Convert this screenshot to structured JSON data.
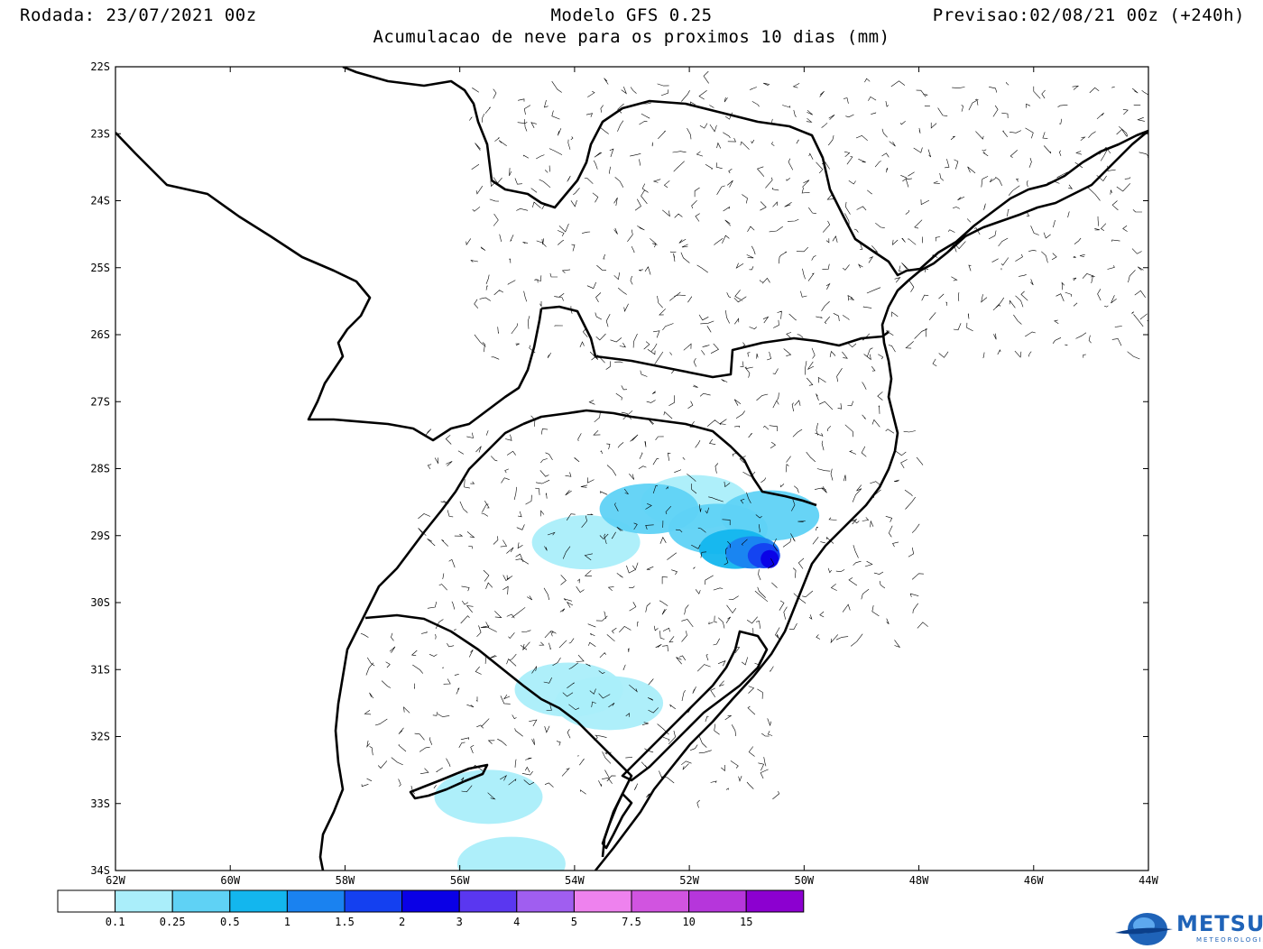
{
  "header": {
    "run": "Rodada: 23/07/2021 00z",
    "model": "Modelo GFS 0.25",
    "subtitle": "Acumulacao de neve para os proximos 10 dias (mm)",
    "valid": "Previsao:02/08/21 00z (+240h)"
  },
  "axes": {
    "lat_labels": [
      "22S",
      "23S",
      "24S",
      "25S",
      "26S",
      "27S",
      "28S",
      "29S",
      "30S",
      "31S",
      "32S",
      "33S",
      "34S"
    ],
    "lon_labels": [
      "62W",
      "60W",
      "58W",
      "56W",
      "54W",
      "52W",
      "50W",
      "48W",
      "46W",
      "44W"
    ]
  },
  "colorbar": {
    "colors": [
      "#ffffff",
      "#aaeefa",
      "#5fd2f5",
      "#13b6ee",
      "#1a82f0",
      "#1440f0",
      "#0a00e6",
      "#5a37f0",
      "#a05ef0",
      "#ee82ee",
      "#d154e0",
      "#b636db",
      "#8c00d0"
    ],
    "labels": [
      "0.1",
      "0.25",
      "0.5",
      "1",
      "1.5",
      "2",
      "3",
      "4",
      "5",
      "7.5",
      "10",
      "15"
    ]
  },
  "map": {
    "lon_range": [
      -62,
      -44
    ],
    "lat_range": [
      -34,
      -22
    ],
    "snow_areas": [
      {
        "lon": -51.9,
        "lat": -28.5,
        "level": 1
      },
      {
        "lon": -53.8,
        "lat": -29.1,
        "level": 1
      },
      {
        "lon": -52.7,
        "lat": -28.6,
        "level": 2
      },
      {
        "lon": -51.5,
        "lat": -28.9,
        "level": 2
      },
      {
        "lon": -50.6,
        "lat": -28.7,
        "level": 2
      },
      {
        "lon": -51.2,
        "lat": -29.2,
        "level": 3
      },
      {
        "lon": -50.9,
        "lat": -29.25,
        "level": 4
      },
      {
        "lon": -50.7,
        "lat": -29.3,
        "level": 5
      },
      {
        "lon": -50.6,
        "lat": -29.35,
        "level": 6
      },
      {
        "lon": -53.4,
        "lat": -31.5,
        "level": 1
      },
      {
        "lon": -54.1,
        "lat": -31.3,
        "level": 1
      },
      {
        "lon": -55.5,
        "lat": -32.9,
        "level": 1
      },
      {
        "lon": -55.1,
        "lat": -33.9,
        "level": 1
      }
    ]
  },
  "logo": {
    "main": "METSUL",
    "sub": "METEOROLOGIA"
  }
}
